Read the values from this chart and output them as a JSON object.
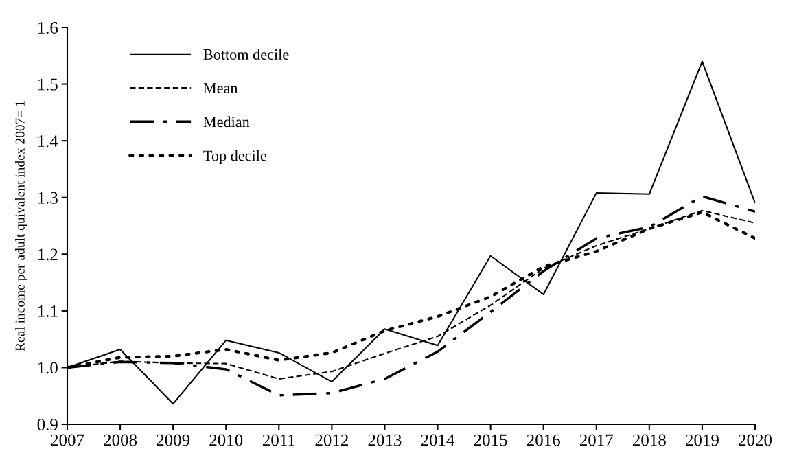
{
  "chart_data": {
    "type": "line",
    "ylabel": "Real income per adult quivalent index 2007= 1",
    "categories": [
      "2007",
      "2008",
      "2009",
      "2010",
      "2011",
      "2012",
      "2013",
      "2014",
      "2015",
      "2016",
      "2017",
      "2018",
      "2019",
      "2020"
    ],
    "series": [
      {
        "name": "Bottom decile",
        "color": "#000000",
        "line_style": "solid",
        "values": [
          1.0,
          1.032,
          0.936,
          1.048,
          1.026,
          0.975,
          1.068,
          1.039,
          1.197,
          1.129,
          1.308,
          1.306,
          1.54,
          1.29
        ]
      },
      {
        "name": "Mean",
        "color": "#000000",
        "line_style": "dashed",
        "values": [
          1.0,
          1.011,
          1.008,
          1.007,
          0.98,
          0.993,
          1.025,
          1.055,
          1.11,
          1.175,
          1.215,
          1.245,
          1.277,
          1.255
        ]
      },
      {
        "name": "Median",
        "color": "#000000",
        "line_style": "dashdot",
        "values": [
          1.0,
          1.01,
          1.008,
          0.997,
          0.951,
          0.955,
          0.98,
          1.028,
          1.098,
          1.17,
          1.228,
          1.248,
          1.302,
          1.275
        ]
      },
      {
        "name": "Top decile",
        "color": "#000000",
        "line_style": "dotted",
        "values": [
          1.0,
          1.018,
          1.02,
          1.032,
          1.013,
          1.026,
          1.065,
          1.09,
          1.125,
          1.178,
          1.205,
          1.245,
          1.274,
          1.228
        ]
      }
    ],
    "ylim": [
      0.9,
      1.6
    ],
    "yticks": [
      0.9,
      {
        "value": 1.0,
        "label": "1.0"
      },
      1.1,
      1.2,
      1.3,
      1.4,
      1.5,
      1.6
    ],
    "grid": false,
    "legend": "top left",
    "marker": "none"
  }
}
